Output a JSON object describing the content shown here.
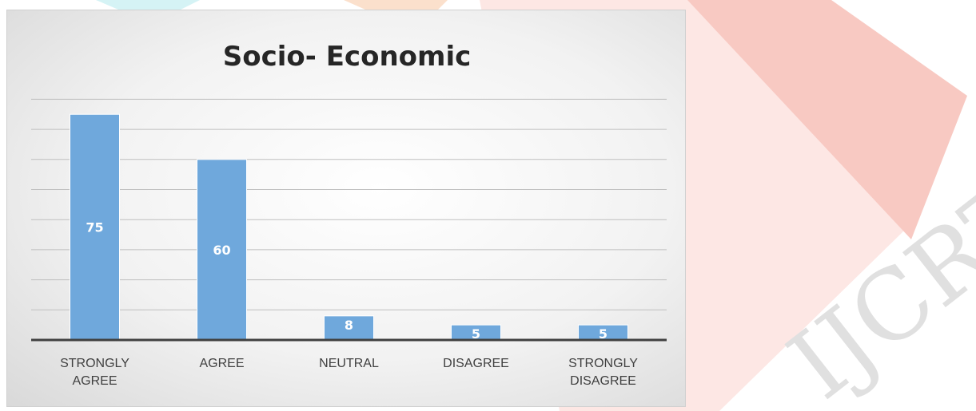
{
  "chart_data": {
    "type": "bar",
    "title": "Socio- Economic",
    "categories": [
      [
        "STRONGLY",
        "AGREE"
      ],
      [
        "AGREE"
      ],
      [
        "NEUTRAL"
      ],
      [
        "DISAGREE"
      ],
      [
        "STRONGLY",
        "DISAGREE"
      ]
    ],
    "values": [
      75,
      60,
      8,
      5,
      5
    ],
    "ylim": [
      0,
      80
    ],
    "grid": true,
    "bar_color": "#6fa8dc",
    "data_labels": [
      "75",
      "60",
      "8",
      "5",
      "5"
    ]
  },
  "colors": {
    "watermark_red": "#f4b9b2",
    "watermark_orange": "#fbd3b4",
    "watermark_cyan": "#c8f0f2",
    "axis": "#404040",
    "gridline": "#bfbfbf"
  }
}
